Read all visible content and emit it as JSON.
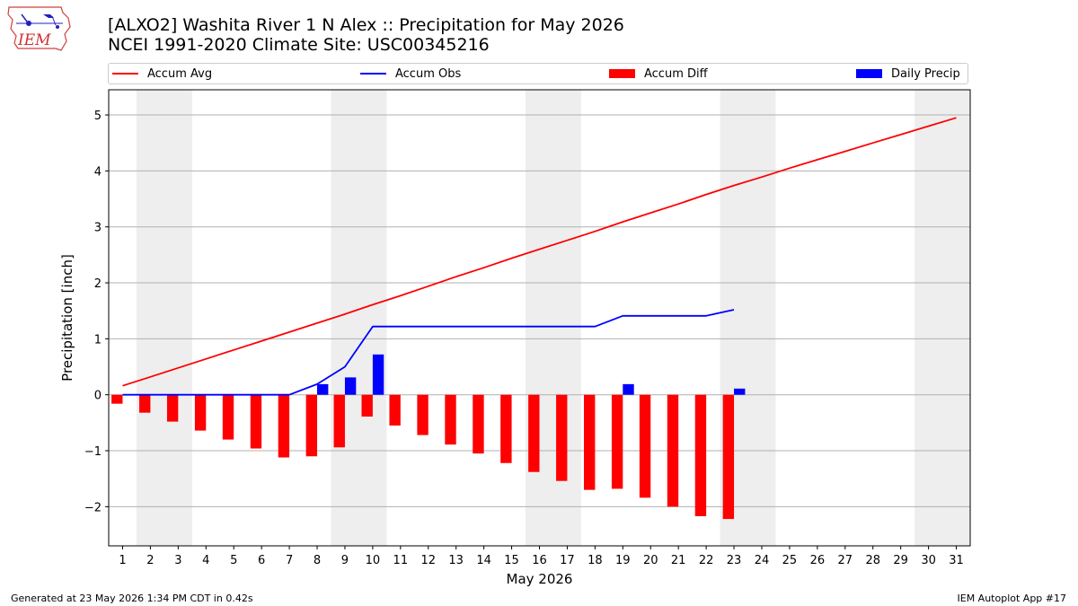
{
  "header": {
    "title_line1": "[ALXO2] Washita River 1 N Alex :: Precipitation for May 2026",
    "title_line2": "NCEI 1991-2020 Climate Site: USC00345216",
    "logo_text": "IEM"
  },
  "legend": {
    "accum_avg": "Accum Avg",
    "accum_obs": "Accum Obs",
    "accum_diff": "Accum Diff",
    "daily_precip": "Daily Precip"
  },
  "footer": {
    "left": "Generated at 23 May 2026 1:34 PM CDT in 0.42s",
    "right": "IEM Autoplot App #17"
  },
  "colors": {
    "avg": "#ff0000",
    "obs": "#0000ff",
    "diff": "#ff0000",
    "daily": "#0000ff",
    "weekend_shade": "#eeeeee",
    "grid": "#b0b0b0"
  },
  "chart_data": {
    "type": "bar",
    "xlabel": "May 2026",
    "ylabel": "Precipitation [inch]",
    "xlim": [
      0.5,
      31.5
    ],
    "ylim": [
      -2.7,
      5.45
    ],
    "x_ticks": [
      1,
      2,
      3,
      4,
      5,
      6,
      7,
      8,
      9,
      10,
      11,
      12,
      13,
      14,
      15,
      16,
      17,
      18,
      19,
      20,
      21,
      22,
      23,
      24,
      25,
      26,
      27,
      28,
      29,
      30,
      31
    ],
    "y_ticks": [
      -2,
      -1,
      0,
      1,
      2,
      3,
      4,
      5
    ],
    "grid": "horizontal",
    "legend_position": "top",
    "weekend_shading": [
      [
        2,
        3
      ],
      [
        9,
        10
      ],
      [
        16,
        17
      ],
      [
        23,
        24
      ],
      [
        30,
        31
      ]
    ],
    "series": [
      {
        "name": "Accum Avg",
        "kind": "line",
        "days": [
          1,
          2,
          3,
          4,
          5,
          6,
          7,
          8,
          9,
          10,
          11,
          12,
          13,
          14,
          15,
          16,
          17,
          18,
          19,
          20,
          21,
          22,
          23,
          24,
          25,
          26,
          27,
          28,
          29,
          30,
          31
        ],
        "values": [
          0.16,
          0.32,
          0.48,
          0.64,
          0.8,
          0.96,
          1.12,
          1.28,
          1.44,
          1.61,
          1.77,
          1.94,
          2.11,
          2.27,
          2.44,
          2.6,
          2.76,
          2.92,
          3.09,
          3.25,
          3.41,
          3.58,
          3.74,
          3.89,
          4.05,
          4.2,
          4.35,
          4.5,
          4.65,
          4.8,
          4.95
        ]
      },
      {
        "name": "Accum Obs",
        "kind": "line",
        "days": [
          1,
          2,
          3,
          4,
          5,
          6,
          7,
          8,
          9,
          10,
          11,
          12,
          13,
          14,
          15,
          16,
          17,
          18,
          19,
          20,
          21,
          22,
          23
        ],
        "values": [
          0,
          0,
          0,
          0,
          0,
          0,
          0,
          0.19,
          0.5,
          1.22,
          1.22,
          1.22,
          1.22,
          1.22,
          1.22,
          1.22,
          1.22,
          1.22,
          1.41,
          1.41,
          1.41,
          1.41,
          1.52
        ]
      },
      {
        "name": "Accum Diff",
        "kind": "bar",
        "days": [
          1,
          2,
          3,
          4,
          5,
          6,
          7,
          8,
          9,
          10,
          11,
          12,
          13,
          14,
          15,
          16,
          17,
          18,
          19,
          20,
          21,
          22,
          23
        ],
        "values": [
          -0.16,
          -0.32,
          -0.48,
          -0.64,
          -0.8,
          -0.96,
          -1.12,
          -1.1,
          -0.94,
          -0.39,
          -0.55,
          -0.72,
          -0.89,
          -1.05,
          -1.22,
          -1.38,
          -1.54,
          -1.7,
          -1.68,
          -1.84,
          -2.0,
          -2.17,
          -2.22
        ]
      },
      {
        "name": "Daily Precip",
        "kind": "bar",
        "days": [
          8,
          9,
          10,
          19,
          23
        ],
        "values": [
          0.19,
          0.31,
          0.72,
          0.19,
          0.11
        ]
      }
    ]
  }
}
